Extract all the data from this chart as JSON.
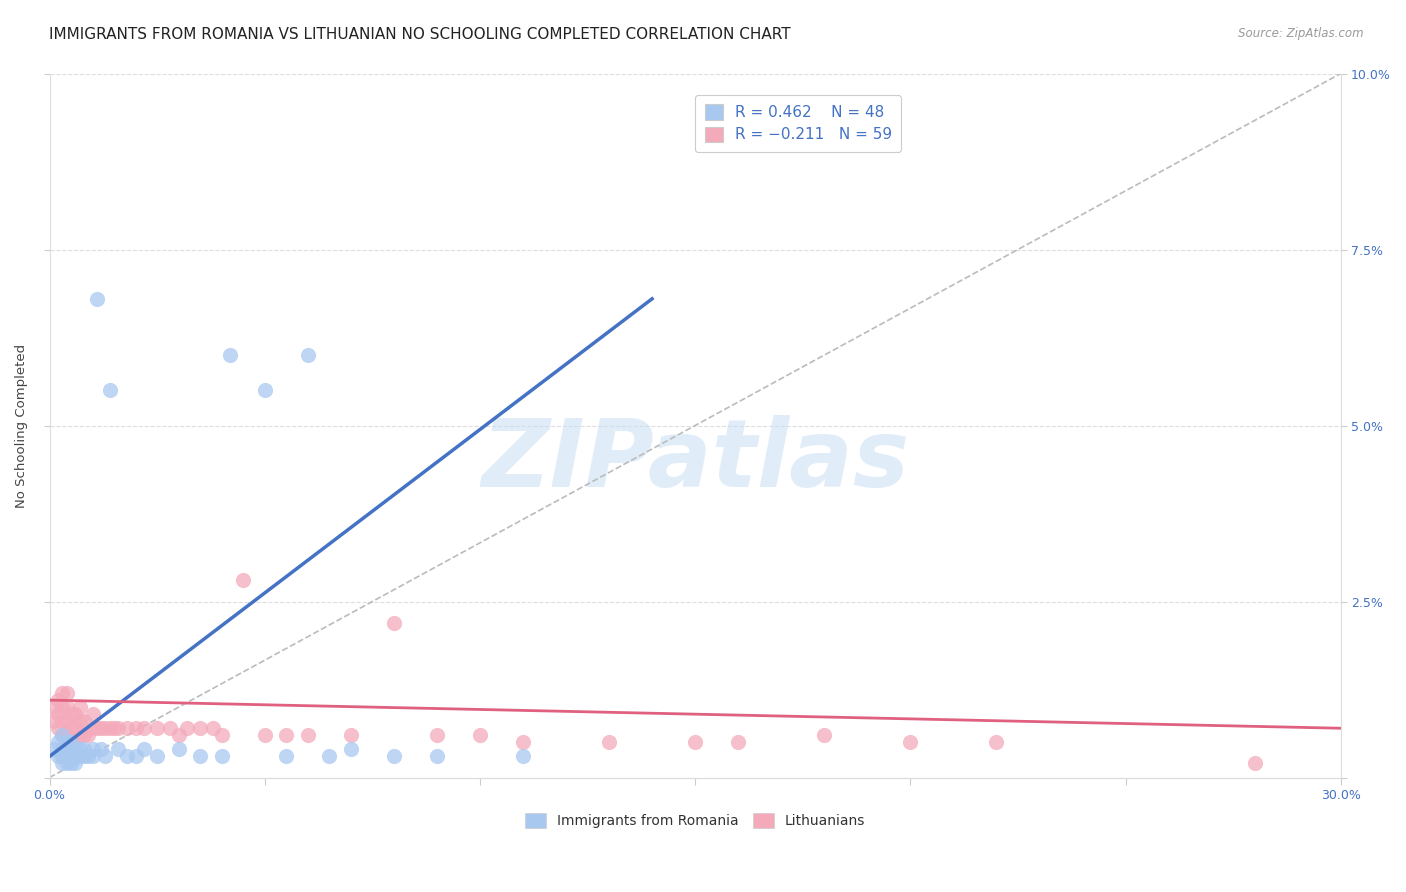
{
  "title": "IMMIGRANTS FROM ROMANIA VS LITHUANIAN NO SCHOOLING COMPLETED CORRELATION CHART",
  "source": "Source: ZipAtlas.com",
  "ylabel": "No Schooling Completed",
  "xlim": [
    0.0,
    0.3
  ],
  "ylim": [
    0.0,
    0.1
  ],
  "blue_color": "#A8C8F0",
  "blue_edge_color": "#A8C8F0",
  "pink_color": "#F4AABB",
  "pink_edge_color": "#F4AABB",
  "blue_line_color": "#4472C4",
  "pink_line_color": "#E06080",
  "diag_color": "#BBBBBB",
  "grid_color": "#DDDDDD",
  "tick_color": "#4472C4",
  "legend_label1": "Immigrants from Romania",
  "legend_label2": "Lithuanians",
  "watermark": "ZIPatlas",
  "title_fontsize": 11,
  "tick_fontsize": 9,
  "blue_scatter_x": [
    0.001,
    0.002,
    0.002,
    0.003,
    0.003,
    0.003,
    0.003,
    0.004,
    0.004,
    0.004,
    0.004,
    0.004,
    0.004,
    0.005,
    0.005,
    0.005,
    0.005,
    0.006,
    0.006,
    0.006,
    0.007,
    0.007,
    0.008,
    0.008,
    0.009,
    0.01,
    0.01,
    0.011,
    0.012,
    0.013,
    0.014,
    0.016,
    0.018,
    0.02,
    0.022,
    0.025,
    0.03,
    0.035,
    0.04,
    0.042,
    0.05,
    0.055,
    0.06,
    0.065,
    0.07,
    0.08,
    0.09,
    0.11
  ],
  "blue_scatter_y": [
    0.004,
    0.003,
    0.005,
    0.002,
    0.003,
    0.004,
    0.006,
    0.002,
    0.003,
    0.004,
    0.005,
    0.003,
    0.004,
    0.002,
    0.003,
    0.004,
    0.005,
    0.002,
    0.003,
    0.004,
    0.003,
    0.004,
    0.003,
    0.004,
    0.003,
    0.003,
    0.004,
    0.068,
    0.004,
    0.003,
    0.055,
    0.004,
    0.003,
    0.003,
    0.004,
    0.003,
    0.004,
    0.003,
    0.003,
    0.06,
    0.055,
    0.003,
    0.06,
    0.003,
    0.004,
    0.003,
    0.003,
    0.003
  ],
  "pink_scatter_x": [
    0.001,
    0.001,
    0.002,
    0.002,
    0.002,
    0.003,
    0.003,
    0.003,
    0.003,
    0.004,
    0.004,
    0.004,
    0.004,
    0.005,
    0.005,
    0.005,
    0.006,
    0.006,
    0.006,
    0.007,
    0.007,
    0.007,
    0.008,
    0.008,
    0.009,
    0.01,
    0.01,
    0.011,
    0.012,
    0.013,
    0.014,
    0.015,
    0.016,
    0.018,
    0.02,
    0.022,
    0.025,
    0.028,
    0.03,
    0.032,
    0.035,
    0.038,
    0.04,
    0.045,
    0.05,
    0.055,
    0.06,
    0.07,
    0.08,
    0.09,
    0.1,
    0.11,
    0.13,
    0.15,
    0.16,
    0.18,
    0.2,
    0.22,
    0.28
  ],
  "pink_scatter_y": [
    0.008,
    0.01,
    0.007,
    0.009,
    0.011,
    0.006,
    0.008,
    0.01,
    0.012,
    0.006,
    0.008,
    0.01,
    0.012,
    0.005,
    0.007,
    0.009,
    0.005,
    0.007,
    0.009,
    0.006,
    0.008,
    0.01,
    0.006,
    0.008,
    0.006,
    0.007,
    0.009,
    0.007,
    0.007,
    0.007,
    0.007,
    0.007,
    0.007,
    0.007,
    0.007,
    0.007,
    0.007,
    0.007,
    0.006,
    0.007,
    0.007,
    0.007,
    0.006,
    0.028,
    0.006,
    0.006,
    0.006,
    0.006,
    0.022,
    0.006,
    0.006,
    0.005,
    0.005,
    0.005,
    0.005,
    0.006,
    0.005,
    0.005,
    0.002
  ],
  "blue_line_x": [
    0.0,
    0.14
  ],
  "blue_line_y": [
    0.003,
    0.068
  ],
  "pink_line_x": [
    0.0,
    0.3
  ],
  "pink_line_y": [
    0.011,
    0.007
  ]
}
